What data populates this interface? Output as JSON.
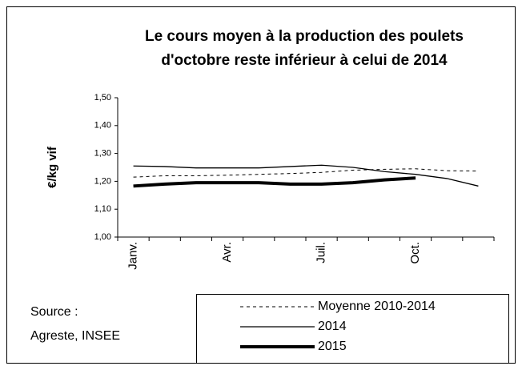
{
  "chart_data": {
    "type": "line",
    "title": [
      "Le cours moyen à la production des poulets",
      "d'octobre reste inférieur à celui de 2014"
    ],
    "ylabel": "€/kg vif",
    "source": [
      "Source :",
      "Agreste, INSEE"
    ],
    "categories": [
      "Janv.",
      null,
      null,
      "Avr.",
      null,
      null,
      "Juil.",
      null,
      null,
      "Oct.",
      null,
      null
    ],
    "ylim": [
      1.0,
      1.5
    ],
    "yticks": [
      {
        "value": 1.0,
        "label": "1,00"
      },
      {
        "value": 1.1,
        "label": "1,10"
      },
      {
        "value": 1.2,
        "label": "1,20"
      },
      {
        "value": 1.3,
        "label": "1,30"
      },
      {
        "value": 1.4,
        "label": "1,40"
      },
      {
        "value": 1.5,
        "label": "1,50"
      }
    ],
    "series": [
      {
        "name": "Moyenne 2010-2014",
        "color": "#000000",
        "style": "dashed",
        "width": 1,
        "values": [
          1.215,
          1.22,
          1.22,
          1.222,
          1.225,
          1.228,
          1.232,
          1.24,
          1.243,
          1.245,
          1.238,
          1.237
        ]
      },
      {
        "name": "2014",
        "color": "#000000",
        "style": "solid",
        "width": 1.3,
        "values": [
          1.255,
          1.253,
          1.248,
          1.248,
          1.248,
          1.253,
          1.258,
          1.25,
          1.235,
          1.225,
          1.21,
          1.183
        ]
      },
      {
        "name": "2015",
        "color": "#000000",
        "style": "solid",
        "width": 4,
        "values": [
          1.183,
          1.19,
          1.195,
          1.195,
          1.195,
          1.19,
          1.19,
          1.195,
          1.205,
          1.212,
          null,
          null
        ]
      }
    ]
  }
}
